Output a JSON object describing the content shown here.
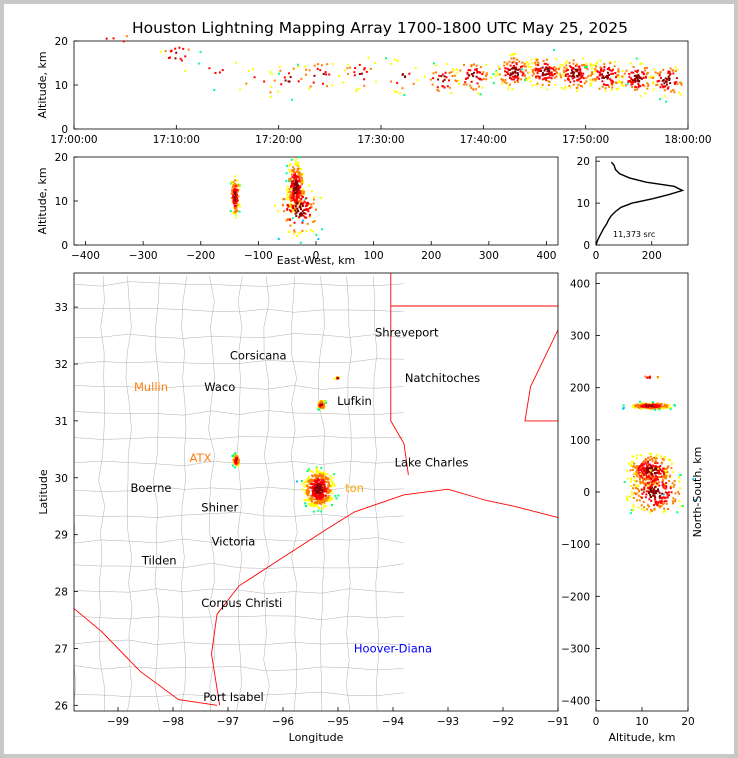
{
  "chart_data": [
    {
      "type": "scatter",
      "title": "Houston Lightning Mapping Array 1700-1800 UTC May 25, 2025",
      "ylabel": "Altitude, km",
      "xlim": [
        "17:00:00",
        "18:00:00"
      ],
      "ylim": [
        0,
        20
      ],
      "x_ticks": [
        "17:00:00",
        "17:10:00",
        "17:20:00",
        "17:30:00",
        "17:40:00",
        "17:50:00",
        "18:00:00"
      ],
      "y_ticks": [
        "0",
        "10",
        "20"
      ],
      "density_clusters": [
        {
          "time": "17:04:00",
          "alt": 19.5,
          "count": 4
        },
        {
          "time": "17:10:00",
          "alt": 17,
          "count": 18
        },
        {
          "time": "17:14:00",
          "alt": 14,
          "count": 6
        },
        {
          "time": "17:18:00",
          "alt": 10,
          "count": 10
        },
        {
          "time": "17:21:00",
          "alt": 11,
          "count": 18
        },
        {
          "time": "17:24:00",
          "alt": 12,
          "count": 24
        },
        {
          "time": "17:28:00",
          "alt": 12.5,
          "count": 24
        },
        {
          "time": "17:32:00",
          "alt": 12,
          "count": 20
        },
        {
          "time": "17:36:00",
          "alt": 11,
          "count": 36
        },
        {
          "time": "17:39:00",
          "alt": 12,
          "count": 60
        },
        {
          "time": "17:43:00",
          "alt": 13,
          "count": 110
        },
        {
          "time": "17:46:00",
          "alt": 13,
          "count": 120
        },
        {
          "time": "17:49:00",
          "alt": 12.5,
          "count": 110
        },
        {
          "time": "17:52:00",
          "alt": 12,
          "count": 100
        },
        {
          "time": "17:55:00",
          "alt": 11.5,
          "count": 90
        },
        {
          "time": "17:58:00",
          "alt": 11,
          "count": 70
        }
      ]
    },
    {
      "type": "scatter",
      "xlabel": "East-West, km",
      "ylabel": "Altitude, km",
      "xlim": [
        -420,
        420
      ],
      "ylim": [
        0,
        20
      ],
      "x_ticks": [
        "−400",
        "−300",
        "−200",
        "−100",
        "0",
        "100",
        "200",
        "300",
        "400"
      ],
      "y_ticks": [
        "0",
        "10",
        "20"
      ],
      "density_clusters": [
        {
          "x": -140,
          "alt": 11,
          "count": 120,
          "xspread": 5,
          "yspread": 3
        },
        {
          "x": -35,
          "alt": 13,
          "count": 260,
          "xspread": 10,
          "yspread": 4
        },
        {
          "x": -30,
          "alt": 8,
          "count": 120,
          "xspread": 25,
          "yspread": 4
        }
      ]
    },
    {
      "type": "line",
      "annotation": "11,373 src",
      "xlim": [
        0,
        330
      ],
      "ylim": [
        0,
        21
      ],
      "x_ticks": [
        "0",
        "200"
      ],
      "y_ticks": [
        "0",
        "10",
        "20"
      ],
      "profile": {
        "count": [
          0,
          5,
          12,
          20,
          28,
          38,
          45,
          55,
          70,
          90,
          130,
          200,
          260,
          310,
          280,
          180,
          120,
          85,
          70,
          65,
          55
        ],
        "alt": [
          0,
          1,
          2,
          3,
          4,
          5,
          6,
          7,
          8,
          9,
          10,
          11,
          12,
          13,
          14,
          15,
          16,
          17,
          18,
          19,
          19.8
        ]
      }
    },
    {
      "type": "scatter",
      "xlabel": "Longitude",
      "ylabel": "Latitude",
      "xlim": [
        -99.8,
        -91.0
      ],
      "ylim": [
        25.9,
        33.6
      ],
      "x_ticks": [
        "−99",
        "−98",
        "−97",
        "−96",
        "−95",
        "−94",
        "−93",
        "−92",
        "−91"
      ],
      "y_ticks": [
        "26",
        "27",
        "28",
        "29",
        "30",
        "31",
        "32",
        "33"
      ],
      "cities": [
        {
          "name": "Shreveport",
          "lon": -93.75,
          "lat": 32.55,
          "color": "#000000"
        },
        {
          "name": "Corsicana",
          "lon": -96.45,
          "lat": 32.15,
          "color": "#000000"
        },
        {
          "name": "Natchitoches",
          "lon": -93.1,
          "lat": 31.75,
          "color": "#000000"
        },
        {
          "name": "Mullin",
          "lon": -98.4,
          "lat": 31.6,
          "color": "#ff7f0e"
        },
        {
          "name": "Waco",
          "lon": -97.15,
          "lat": 31.6,
          "color": "#000000"
        },
        {
          "name": "Lufkin",
          "lon": -94.7,
          "lat": 31.35,
          "color": "#000000"
        },
        {
          "name": "ATX",
          "lon": -97.5,
          "lat": 30.35,
          "color": "#ff7f0e"
        },
        {
          "name": "Lake Charles",
          "lon": -93.3,
          "lat": 30.27,
          "color": "#000000"
        },
        {
          "name": "Boerne",
          "lon": -98.4,
          "lat": 29.82,
          "color": "#000000"
        },
        {
          "name": "ton",
          "lon": -94.7,
          "lat": 29.82,
          "color": "#ffa500"
        },
        {
          "name": "Shiner",
          "lon": -97.15,
          "lat": 29.48,
          "color": "#000000"
        },
        {
          "name": "Victoria",
          "lon": -96.9,
          "lat": 28.88,
          "color": "#000000"
        },
        {
          "name": "Tilden",
          "lon": -98.25,
          "lat": 28.55,
          "color": "#000000"
        },
        {
          "name": "Corpus Christi",
          "lon": -96.75,
          "lat": 27.8,
          "color": "#000000"
        },
        {
          "name": "Hoover-Diana",
          "lon": -94.0,
          "lat": 27.0,
          "color": "#0000ff"
        },
        {
          "name": "Port Isabel",
          "lon": -96.9,
          "lat": 26.15,
          "color": "#000000"
        }
      ],
      "density_clusters": [
        {
          "lon": -95.35,
          "lat": 29.8,
          "count": 450,
          "xspread": 0.18,
          "yspread": 0.22
        },
        {
          "lon": -95.3,
          "lat": 31.28,
          "count": 60,
          "xspread": 0.05,
          "yspread": 0.05
        },
        {
          "lon": -96.85,
          "lat": 30.3,
          "count": 70,
          "xspread": 0.04,
          "yspread": 0.07
        },
        {
          "lon": -95.0,
          "lat": 31.75,
          "count": 8,
          "xspread": 0.03,
          "yspread": 0.02
        }
      ]
    },
    {
      "type": "scatter",
      "xlabel": "Altitude, km",
      "ylabel": "North-South, km",
      "xlim": [
        0,
        20
      ],
      "ylim": [
        -420,
        420
      ],
      "x_ticks": [
        "0",
        "10",
        "20"
      ],
      "y_ticks": [
        "−400",
        "−300",
        "−200",
        "−100",
        "0",
        "100",
        "200",
        "300",
        "400"
      ],
      "density_clusters": [
        {
          "alt": 12,
          "y": 165,
          "count": 200,
          "xspread": 3,
          "yspread": 4
        },
        {
          "alt": 12,
          "y": 40,
          "count": 260,
          "xspread": 3.5,
          "yspread": 22
        },
        {
          "alt": 13,
          "y": 0,
          "count": 200,
          "xspread": 4,
          "yspread": 30
        },
        {
          "alt": 12,
          "y": 220,
          "count": 8,
          "xspread": 1.5,
          "yspread": 2
        }
      ]
    }
  ],
  "colors": {
    "state_border": "#ff0000",
    "county_border": "#b0b0b0",
    "coast": "#ff0000",
    "density_scale": [
      "#0000ff",
      "#00bfff",
      "#00ff7f",
      "#ffff00",
      "#ff7f00",
      "#ff0000",
      "#8b0000"
    ]
  }
}
